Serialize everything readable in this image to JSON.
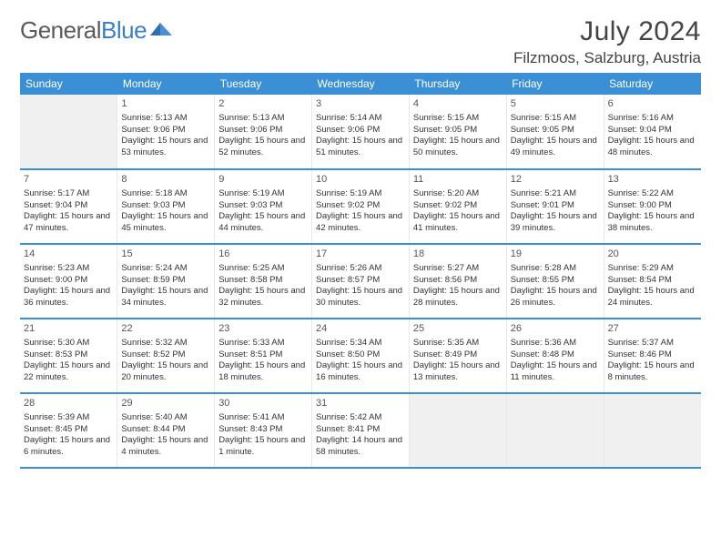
{
  "logo": {
    "part1": "General",
    "part2": "Blue"
  },
  "title": "July 2024",
  "location": "Filzmoos, Salzburg, Austria",
  "colors": {
    "header_bg": "#3b8fd4",
    "header_text": "#ffffff",
    "row_border": "#3b8fd4",
    "logo_gray": "#5a5a5a",
    "logo_blue": "#3b7fc4",
    "empty_bg": "#ededed"
  },
  "day_headers": [
    "Sunday",
    "Monday",
    "Tuesday",
    "Wednesday",
    "Thursday",
    "Friday",
    "Saturday"
  ],
  "weeks": [
    [
      null,
      {
        "n": "1",
        "sr": "5:13 AM",
        "ss": "9:06 PM",
        "dl": "15 hours and 53 minutes."
      },
      {
        "n": "2",
        "sr": "5:13 AM",
        "ss": "9:06 PM",
        "dl": "15 hours and 52 minutes."
      },
      {
        "n": "3",
        "sr": "5:14 AM",
        "ss": "9:06 PM",
        "dl": "15 hours and 51 minutes."
      },
      {
        "n": "4",
        "sr": "5:15 AM",
        "ss": "9:05 PM",
        "dl": "15 hours and 50 minutes."
      },
      {
        "n": "5",
        "sr": "5:15 AM",
        "ss": "9:05 PM",
        "dl": "15 hours and 49 minutes."
      },
      {
        "n": "6",
        "sr": "5:16 AM",
        "ss": "9:04 PM",
        "dl": "15 hours and 48 minutes."
      }
    ],
    [
      {
        "n": "7",
        "sr": "5:17 AM",
        "ss": "9:04 PM",
        "dl": "15 hours and 47 minutes."
      },
      {
        "n": "8",
        "sr": "5:18 AM",
        "ss": "9:03 PM",
        "dl": "15 hours and 45 minutes."
      },
      {
        "n": "9",
        "sr": "5:19 AM",
        "ss": "9:03 PM",
        "dl": "15 hours and 44 minutes."
      },
      {
        "n": "10",
        "sr": "5:19 AM",
        "ss": "9:02 PM",
        "dl": "15 hours and 42 minutes."
      },
      {
        "n": "11",
        "sr": "5:20 AM",
        "ss": "9:02 PM",
        "dl": "15 hours and 41 minutes."
      },
      {
        "n": "12",
        "sr": "5:21 AM",
        "ss": "9:01 PM",
        "dl": "15 hours and 39 minutes."
      },
      {
        "n": "13",
        "sr": "5:22 AM",
        "ss": "9:00 PM",
        "dl": "15 hours and 38 minutes."
      }
    ],
    [
      {
        "n": "14",
        "sr": "5:23 AM",
        "ss": "9:00 PM",
        "dl": "15 hours and 36 minutes."
      },
      {
        "n": "15",
        "sr": "5:24 AM",
        "ss": "8:59 PM",
        "dl": "15 hours and 34 minutes."
      },
      {
        "n": "16",
        "sr": "5:25 AM",
        "ss": "8:58 PM",
        "dl": "15 hours and 32 minutes."
      },
      {
        "n": "17",
        "sr": "5:26 AM",
        "ss": "8:57 PM",
        "dl": "15 hours and 30 minutes."
      },
      {
        "n": "18",
        "sr": "5:27 AM",
        "ss": "8:56 PM",
        "dl": "15 hours and 28 minutes."
      },
      {
        "n": "19",
        "sr": "5:28 AM",
        "ss": "8:55 PM",
        "dl": "15 hours and 26 minutes."
      },
      {
        "n": "20",
        "sr": "5:29 AM",
        "ss": "8:54 PM",
        "dl": "15 hours and 24 minutes."
      }
    ],
    [
      {
        "n": "21",
        "sr": "5:30 AM",
        "ss": "8:53 PM",
        "dl": "15 hours and 22 minutes."
      },
      {
        "n": "22",
        "sr": "5:32 AM",
        "ss": "8:52 PM",
        "dl": "15 hours and 20 minutes."
      },
      {
        "n": "23",
        "sr": "5:33 AM",
        "ss": "8:51 PM",
        "dl": "15 hours and 18 minutes."
      },
      {
        "n": "24",
        "sr": "5:34 AM",
        "ss": "8:50 PM",
        "dl": "15 hours and 16 minutes."
      },
      {
        "n": "25",
        "sr": "5:35 AM",
        "ss": "8:49 PM",
        "dl": "15 hours and 13 minutes."
      },
      {
        "n": "26",
        "sr": "5:36 AM",
        "ss": "8:48 PM",
        "dl": "15 hours and 11 minutes."
      },
      {
        "n": "27",
        "sr": "5:37 AM",
        "ss": "8:46 PM",
        "dl": "15 hours and 8 minutes."
      }
    ],
    [
      {
        "n": "28",
        "sr": "5:39 AM",
        "ss": "8:45 PM",
        "dl": "15 hours and 6 minutes."
      },
      {
        "n": "29",
        "sr": "5:40 AM",
        "ss": "8:44 PM",
        "dl": "15 hours and 4 minutes."
      },
      {
        "n": "30",
        "sr": "5:41 AM",
        "ss": "8:43 PM",
        "dl": "15 hours and 1 minute."
      },
      {
        "n": "31",
        "sr": "5:42 AM",
        "ss": "8:41 PM",
        "dl": "14 hours and 58 minutes."
      },
      null,
      null,
      null
    ]
  ],
  "labels": {
    "sunrise": "Sunrise:",
    "sunset": "Sunset:",
    "daylight": "Daylight:"
  }
}
